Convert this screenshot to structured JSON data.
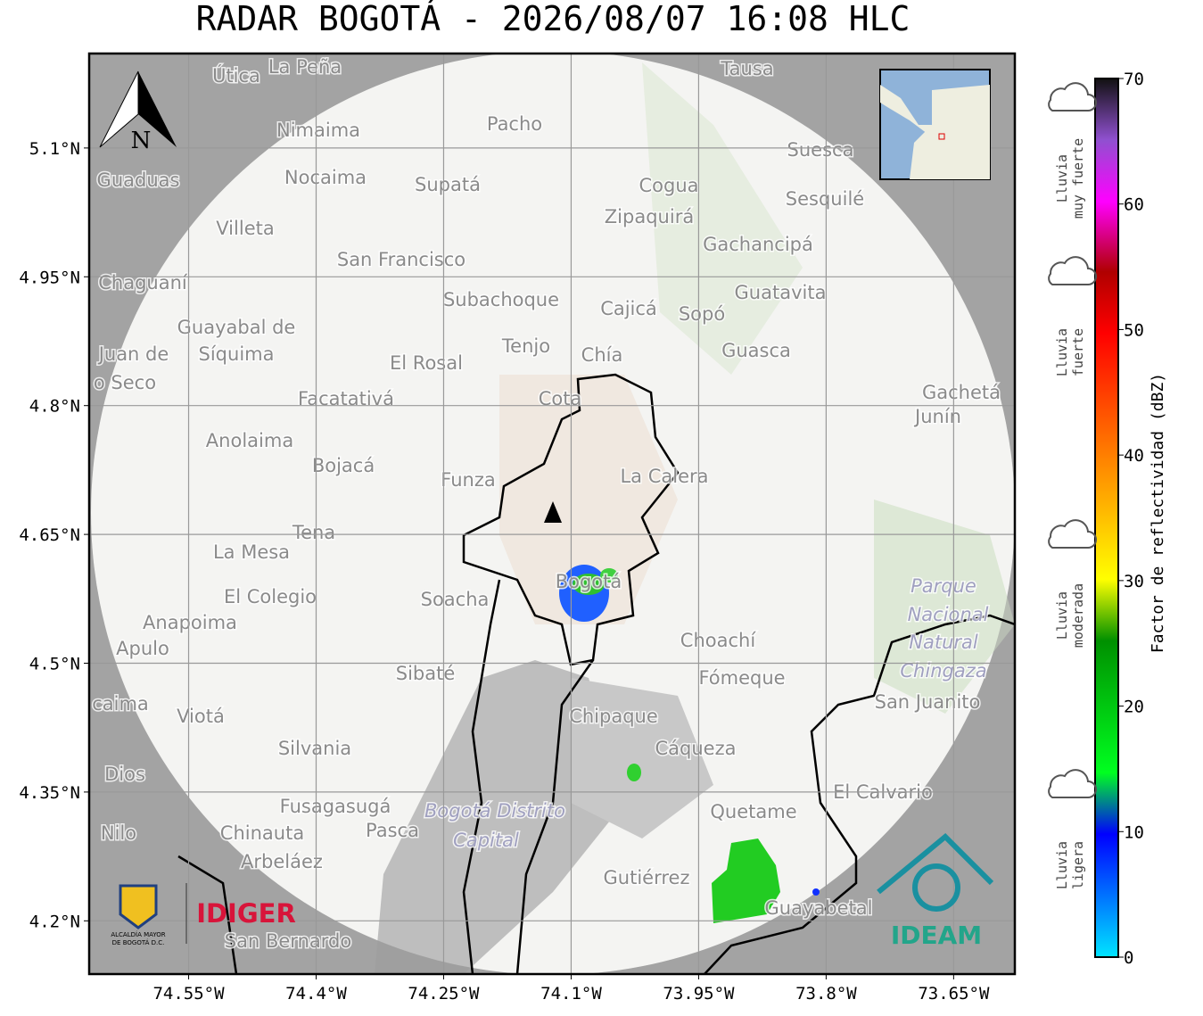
{
  "title": "RADAR BOGOTÁ - 2026/08/07 16:08 HLC",
  "map": {
    "xlim": [
      -74.667,
      -73.578
    ],
    "ylim": [
      4.138,
      5.21
    ],
    "xticks": [
      {
        "value": -74.55,
        "label": "74.55°W"
      },
      {
        "value": -74.4,
        "label": "74.4°W"
      },
      {
        "value": -74.25,
        "label": "74.25°W"
      },
      {
        "value": -74.1,
        "label": "74.1°W"
      },
      {
        "value": -73.95,
        "label": "73.95°W"
      },
      {
        "value": -73.8,
        "label": "73.8°W"
      },
      {
        "value": -73.65,
        "label": "73.65°W"
      }
    ],
    "yticks": [
      {
        "value": 5.1,
        "label": "5.1°N"
      },
      {
        "value": 4.95,
        "label": "4.95°N"
      },
      {
        "value": 4.8,
        "label": "4.8°N"
      },
      {
        "value": 4.65,
        "label": "4.65°N"
      },
      {
        "value": 4.5,
        "label": "4.5°N"
      },
      {
        "value": 4.35,
        "label": "4.35°N"
      },
      {
        "value": 4.2,
        "label": "4.2°N"
      }
    ],
    "grid": true,
    "north_label": "N",
    "places": [
      "La Peña",
      "Útica",
      "Tausa",
      "Pacho",
      "Nimaima",
      "Suesca",
      "Guaduas",
      "Nocaima",
      "Supatá",
      "Cogua",
      "Sesquilé",
      "Zipaquirá",
      "Villeta",
      "Gachancipá",
      "San Francisco",
      "Chaguaní",
      "Guatavita",
      "Subachoque",
      "Cajicá",
      "Sopó",
      "Guayabal de",
      "Síquima",
      "Juan de",
      "o Seco",
      "Tenjo",
      "Chía",
      "Guasca",
      "El Rosal",
      "Cota",
      "Facatativá",
      "Gachetá",
      "Junín",
      "Anolaima",
      "Bojacá",
      "Funza",
      "La Calera",
      "Tena",
      "La Mesa",
      "Bogotá",
      "Soacha",
      "El Colegio",
      "Parque",
      "Nacional",
      "Natural",
      "Chingaza",
      "Anapoima",
      "Apulo",
      "Choachí",
      "Sibaté",
      "Fómeque",
      "San Juanito",
      "caima",
      "Viotá",
      "Chipaque",
      "Silvania",
      "Cáqueza",
      "Dios",
      "El Calvario",
      "Fusagasugá",
      "Bogotá Distrito",
      "Capital",
      "Quetame",
      "Nilo",
      "Chinauta",
      "Pasca",
      "Arbeláez",
      "Gutiérrez",
      "Guayabetal",
      "San Bernardo"
    ]
  },
  "colorbar": {
    "label": "Factor de reflectividad (dBZ)",
    "lim": [
      0,
      70
    ],
    "ticks": [
      0,
      10,
      20,
      30,
      40,
      50,
      60,
      70
    ],
    "categories": [
      [
        "Lluvia",
        "muy fuerte"
      ],
      [
        "Lluvia",
        "fuerte"
      ],
      [
        "Lluvia",
        "moderada"
      ],
      [
        "Lluvia",
        "ligera"
      ]
    ]
  },
  "logos": {
    "alcaldia": [
      "ALCALDÍA MAYOR",
      "DE BOGOTÁ D.C."
    ],
    "idiger": "IDIGER",
    "ideam": "IDEAM"
  }
}
